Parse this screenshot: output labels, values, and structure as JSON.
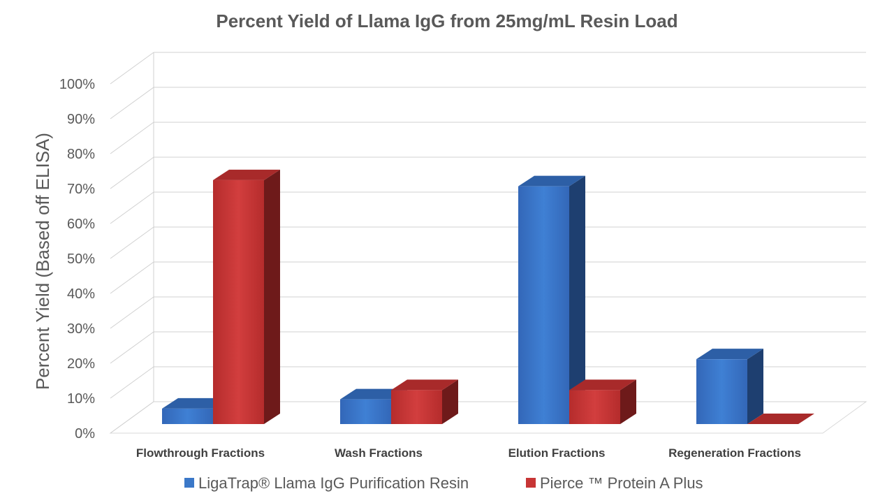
{
  "chart_data": {
    "type": "bar",
    "title": "Percent Yield of Llama IgG from 25mg/mL Resin Load",
    "ylabel": "Percent Yield (Based off ELISA)",
    "xlabel": "",
    "categories": [
      "Flowthrough Fractions",
      "Wash Fractions",
      "Elution Fractions",
      "Regeneration Fractions"
    ],
    "yticks": [
      "0%",
      "10%",
      "20%",
      "30%",
      "40%",
      "50%",
      "60%",
      "70%",
      "80%",
      "90%",
      "100%"
    ],
    "ylim": [
      0,
      100
    ],
    "style": "3d-clustered-column",
    "legend_position": "bottom",
    "grid": true,
    "series": [
      {
        "name": "LigaTrap® Llama IgG Purification Resin",
        "color": "#3b78c8",
        "values": [
          5,
          8,
          77,
          21
        ]
      },
      {
        "name": "Pierce ™ Protein A Plus",
        "color": "#c73535",
        "values": [
          79,
          11,
          11,
          0
        ]
      }
    ]
  }
}
